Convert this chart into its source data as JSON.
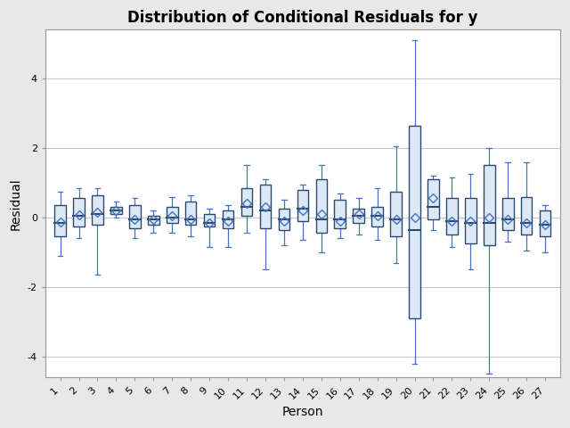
{
  "title": "Distribution of Conditional Residuals for y",
  "xlabel": "Person",
  "ylabel": "Residual",
  "ylim": [
    -4.6,
    5.4
  ],
  "yticks": [
    -4,
    -2,
    0,
    2,
    4
  ],
  "persons": [
    "1",
    "2",
    "3",
    "4",
    "5",
    "6",
    "7",
    "8",
    "9",
    "10",
    "11",
    "12",
    "13",
    "14",
    "15",
    "16",
    "17",
    "18",
    "19",
    "20",
    "21",
    "22",
    "23",
    "24",
    "25",
    "26",
    "27"
  ],
  "box_data": [
    {
      "q1": -0.55,
      "median": -0.15,
      "q3": 0.35,
      "mean": -0.12,
      "whislo": -1.1,
      "whishi": 0.75
    },
    {
      "q1": -0.25,
      "median": 0.05,
      "q3": 0.55,
      "mean": 0.08,
      "whislo": -0.6,
      "whishi": 0.85
    },
    {
      "q1": -0.2,
      "median": 0.1,
      "q3": 0.65,
      "mean": 0.15,
      "whislo": -1.65,
      "whishi": 0.85
    },
    {
      "q1": 0.1,
      "median": 0.2,
      "q3": 0.3,
      "mean": 0.2,
      "whislo": 0.0,
      "whishi": 0.45
    },
    {
      "q1": -0.3,
      "median": -0.05,
      "q3": 0.35,
      "mean": -0.05,
      "whislo": -0.6,
      "whishi": 0.55
    },
    {
      "q1": -0.2,
      "median": -0.05,
      "q3": 0.05,
      "mean": -0.05,
      "whislo": -0.45,
      "whishi": 0.2
    },
    {
      "q1": -0.15,
      "median": 0.0,
      "q3": 0.3,
      "mean": 0.05,
      "whislo": -0.45,
      "whishi": 0.6
    },
    {
      "q1": -0.2,
      "median": -0.05,
      "q3": 0.45,
      "mean": -0.05,
      "whislo": -0.55,
      "whishi": 0.65
    },
    {
      "q1": -0.25,
      "median": -0.15,
      "q3": 0.1,
      "mean": -0.15,
      "whislo": -0.85,
      "whishi": 0.25
    },
    {
      "q1": -0.3,
      "median": -0.05,
      "q3": 0.2,
      "mean": -0.1,
      "whislo": -0.85,
      "whishi": 0.35
    },
    {
      "q1": 0.05,
      "median": 0.3,
      "q3": 0.85,
      "mean": 0.4,
      "whislo": -0.45,
      "whishi": 1.5
    },
    {
      "q1": -0.3,
      "median": 0.2,
      "q3": 0.95,
      "mean": 0.3,
      "whislo": -1.5,
      "whishi": 1.1
    },
    {
      "q1": -0.35,
      "median": -0.05,
      "q3": 0.25,
      "mean": -0.1,
      "whislo": -0.8,
      "whishi": 0.5
    },
    {
      "q1": -0.1,
      "median": 0.25,
      "q3": 0.8,
      "mean": 0.2,
      "whislo": -0.65,
      "whishi": 0.95
    },
    {
      "q1": -0.45,
      "median": -0.05,
      "q3": 1.1,
      "mean": 0.1,
      "whislo": -1.0,
      "whishi": 1.5
    },
    {
      "q1": -0.3,
      "median": -0.05,
      "q3": 0.5,
      "mean": -0.1,
      "whislo": -0.6,
      "whishi": 0.7
    },
    {
      "q1": -0.15,
      "median": 0.05,
      "q3": 0.25,
      "mean": 0.1,
      "whislo": -0.5,
      "whishi": 0.55
    },
    {
      "q1": -0.25,
      "median": 0.05,
      "q3": 0.3,
      "mean": 0.05,
      "whislo": -0.65,
      "whishi": 0.85
    },
    {
      "q1": -0.55,
      "median": -0.05,
      "q3": 0.75,
      "mean": -0.05,
      "whislo": -1.3,
      "whishi": 2.05
    },
    {
      "q1": -2.9,
      "median": -0.35,
      "q3": 2.65,
      "mean": 0.0,
      "whislo": -4.2,
      "whishi": 5.1
    },
    {
      "q1": -0.05,
      "median": 0.3,
      "q3": 1.1,
      "mean": 0.55,
      "whislo": -0.35,
      "whishi": 1.2
    },
    {
      "q1": -0.5,
      "median": -0.1,
      "q3": 0.55,
      "mean": -0.1,
      "whislo": -0.85,
      "whishi": 1.15
    },
    {
      "q1": -0.75,
      "median": -0.15,
      "q3": 0.55,
      "mean": -0.1,
      "whislo": -1.5,
      "whishi": 1.25
    },
    {
      "q1": -0.8,
      "median": -0.15,
      "q3": 1.5,
      "mean": 0.0,
      "whislo": -4.5,
      "whishi": 2.0
    },
    {
      "q1": -0.35,
      "median": -0.05,
      "q3": 0.55,
      "mean": -0.05,
      "whislo": -0.7,
      "whishi": 1.6
    },
    {
      "q1": -0.5,
      "median": -0.15,
      "q3": 0.6,
      "mean": -0.15,
      "whislo": -0.95,
      "whishi": 1.6
    },
    {
      "q1": -0.55,
      "median": -0.2,
      "q3": 0.2,
      "mean": -0.2,
      "whislo": -1.0,
      "whishi": 0.35
    }
  ],
  "box_facecolor": "#dce8f5",
  "box_edgecolor": "#2b4a6b",
  "whisker_color": "#4472c4",
  "cap_color": "#4472c4",
  "median_color": "#2b4a6b",
  "mean_marker_color": "#4472c4",
  "outer_bg": "#e8e8e8",
  "inner_bg": "#ffffff",
  "grid_color": "#c8c8c8",
  "title_fontsize": 12,
  "label_fontsize": 10,
  "tick_fontsize": 8,
  "box_width": 0.6,
  "cap_ratio": 0.45
}
